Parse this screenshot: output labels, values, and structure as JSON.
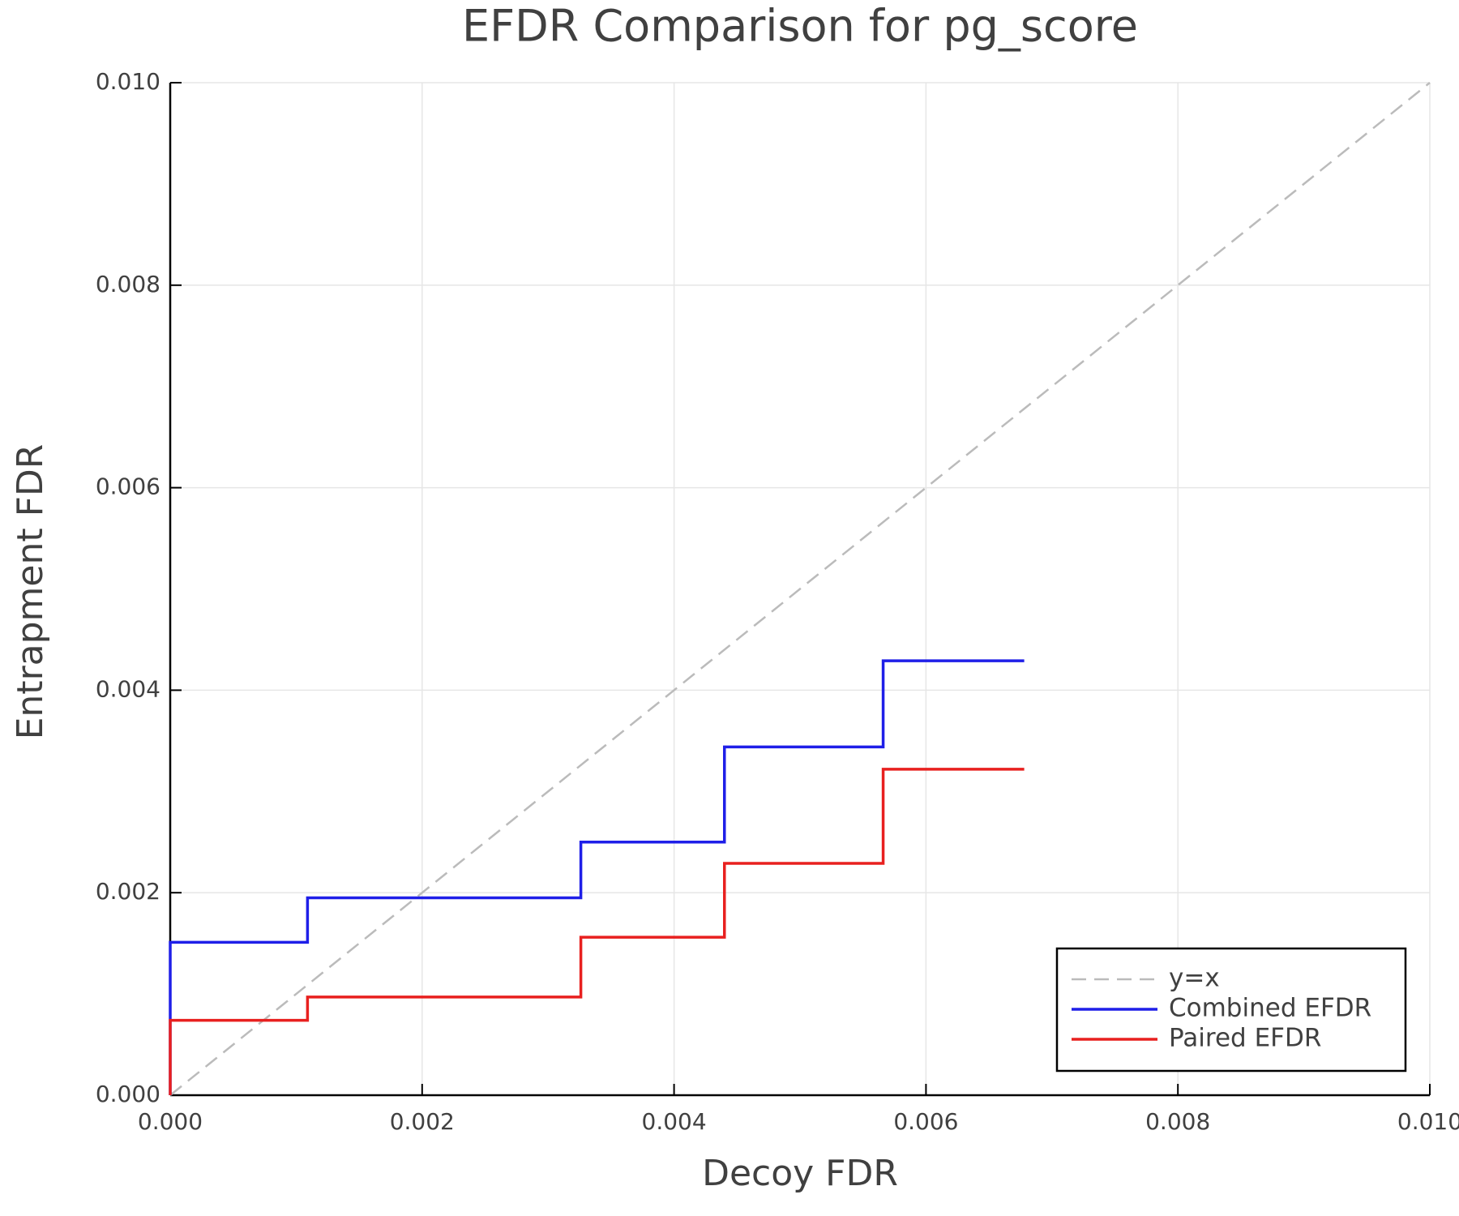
{
  "chart_data": {
    "type": "line",
    "title": "EFDR Comparison for pg_score",
    "xlabel": "Decoy FDR",
    "ylabel": "Entrapment FDR",
    "xlim": [
      0,
      0.01
    ],
    "ylim": [
      0,
      0.01
    ],
    "xticks": [
      {
        "value": 0,
        "label": "0.000"
      },
      {
        "value": 0.002,
        "label": "0.002"
      },
      {
        "value": 0.004,
        "label": "0.004"
      },
      {
        "value": 0.006,
        "label": "0.006"
      },
      {
        "value": 0.008,
        "label": "0.008"
      },
      {
        "value": 0.01,
        "label": "0.010"
      }
    ],
    "yticks": [
      {
        "value": 0,
        "label": "0.000"
      },
      {
        "value": 0.002,
        "label": "0.002"
      },
      {
        "value": 0.004,
        "label": "0.004"
      },
      {
        "value": 0.006,
        "label": "0.006"
      },
      {
        "value": 0.008,
        "label": "0.008"
      },
      {
        "value": 0.01,
        "label": "0.010"
      }
    ],
    "grid": true,
    "legend": "bottom right",
    "series": [
      {
        "name": "y=x",
        "color": "#bbbbbb",
        "dashed": true,
        "x": [
          0,
          0.01
        ],
        "values": [
          0,
          0.01
        ]
      },
      {
        "name": "Combined EFDR",
        "color": "#1f1fe8",
        "dashed": false,
        "x": [
          0,
          0,
          0.00109,
          0.00109,
          0.00326,
          0.00326,
          0.0044,
          0.0044,
          0.00566,
          0.00566,
          0.00678
        ],
        "values": [
          0,
          0.00151,
          0.00151,
          0.00195,
          0.00195,
          0.0025,
          0.0025,
          0.00344,
          0.00344,
          0.00429,
          0.00429
        ]
      },
      {
        "name": "Paired EFDR",
        "color": "#e8201f",
        "dashed": false,
        "x": [
          0,
          0,
          0.00109,
          0.00109,
          0.00326,
          0.00326,
          0.0044,
          0.0044,
          0.00566,
          0.00566,
          0.00678
        ],
        "values": [
          0,
          0.00074,
          0.00074,
          0.00097,
          0.00097,
          0.00156,
          0.00156,
          0.00229,
          0.00229,
          0.00322,
          0.00322
        ]
      }
    ]
  }
}
